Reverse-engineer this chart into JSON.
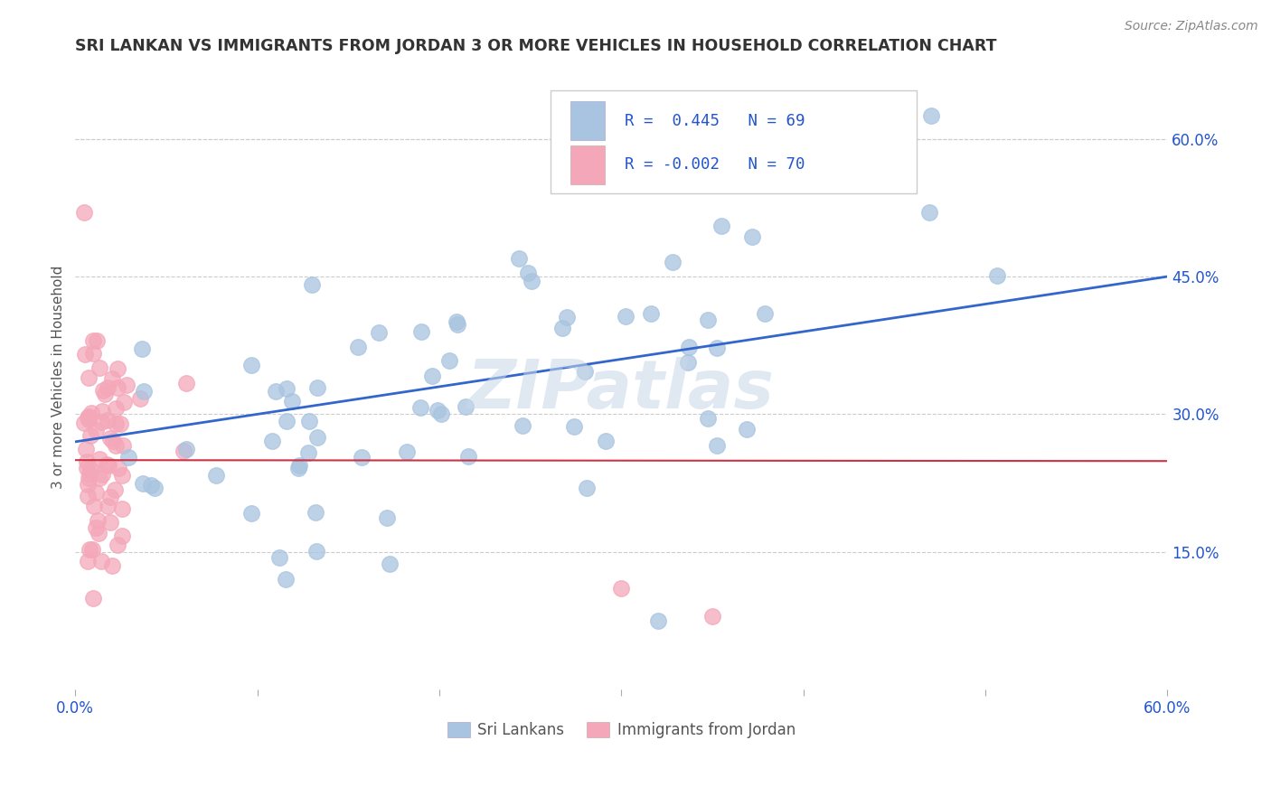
{
  "title": "SRI LANKAN VS IMMIGRANTS FROM JORDAN 3 OR MORE VEHICLES IN HOUSEHOLD CORRELATION CHART",
  "source_text": "Source: ZipAtlas.com",
  "ylabel": "3 or more Vehicles in Household",
  "xlim": [
    0.0,
    0.6
  ],
  "ylim": [
    0.0,
    0.68
  ],
  "x_tick_labels": [
    "0.0%",
    "",
    "",
    "",
    "",
    "",
    "60.0%"
  ],
  "x_ticks": [
    0.0,
    0.1,
    0.2,
    0.3,
    0.4,
    0.5,
    0.6
  ],
  "y_tick_right": [
    0.15,
    0.3,
    0.45,
    0.6
  ],
  "y_tick_right_labels": [
    "15.0%",
    "30.0%",
    "45.0%",
    "60.0%"
  ],
  "legend_blue_r": "R =  0.445",
  "legend_blue_n": "N = 69",
  "legend_pink_r": "R = -0.002",
  "legend_pink_n": "N = 70",
  "blue_color": "#a8c4e0",
  "pink_color": "#f4a7b9",
  "blue_line_color": "#3366cc",
  "pink_line_color": "#cc3344",
  "legend_text_color": "#2255cc",
  "title_color": "#333333",
  "background_color": "#ffffff",
  "watermark": "ZIPatlas",
  "watermark_color": "#c8d8e8",
  "grid_color": "#cccccc",
  "blue_r": 0.445,
  "pink_r": -0.002,
  "blue_n": 69,
  "pink_n": 70,
  "blue_line_x0": 0.0,
  "blue_line_y0": 0.27,
  "blue_line_x1": 0.6,
  "blue_line_y1": 0.45,
  "pink_line_x0": 0.0,
  "pink_line_y0": 0.25,
  "pink_line_x1": 0.6,
  "pink_line_y1": 0.249
}
